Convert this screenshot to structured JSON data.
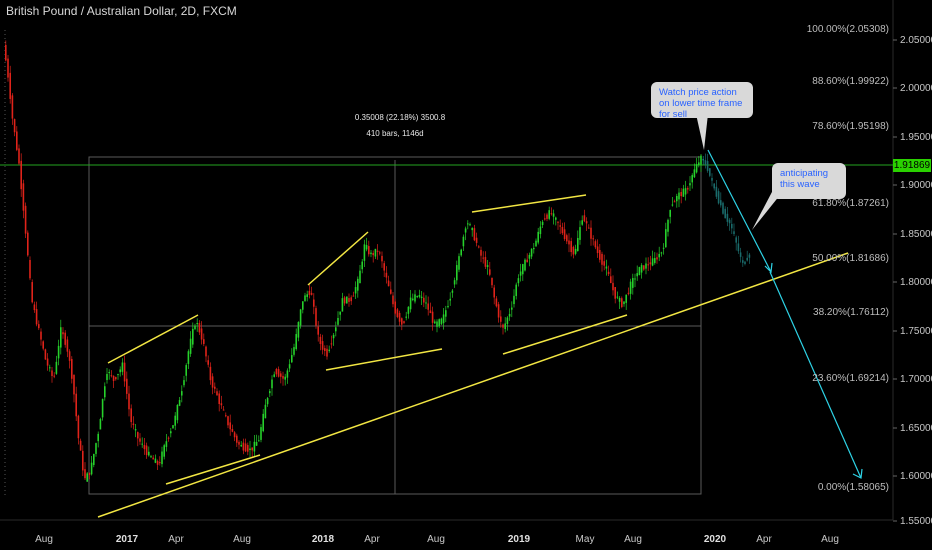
{
  "header": {
    "title": "British Pound / Australian Dollar, 2D, FXCM"
  },
  "price_axis": {
    "labels": [
      "2.05000",
      "2.00000",
      "1.95000",
      "1.90000",
      "1.85000",
      "1.80000",
      "1.75000",
      "1.70000",
      "1.65000",
      "1.60000",
      "1.55000"
    ],
    "current_price": "1.91869"
  },
  "time_axis": {
    "labels": [
      "Aug",
      "2017",
      "Apr",
      "Aug",
      "2018",
      "Apr",
      "Aug",
      "2019",
      "May",
      "Aug",
      "2020",
      "Apr",
      "Aug"
    ],
    "bold": [
      "2017",
      "2018",
      "2019",
      "2020"
    ]
  },
  "fib_levels": [
    "100.00%(2.05308)",
    "88.60%(1.99922)",
    "78.60%(1.95198)",
    "61.80%(1.87261)",
    "50.00%(1.81686)",
    "38.20%(1.76112)",
    "23.60%(1.69214)",
    "0.00%(1.58065)"
  ],
  "measure": {
    "line1": "0.35008 (22.18%) 3500.8",
    "line2": "410 bars, 1146d"
  },
  "callouts": {
    "watch": "Watch price action on lower time frame for sell",
    "wave": "anticipating this wave"
  },
  "colors": {
    "up": "#26d12b",
    "down": "#e0231a",
    "trend": "#f2e643",
    "projection": "#2ed3e6",
    "hline": "#23a320"
  }
}
